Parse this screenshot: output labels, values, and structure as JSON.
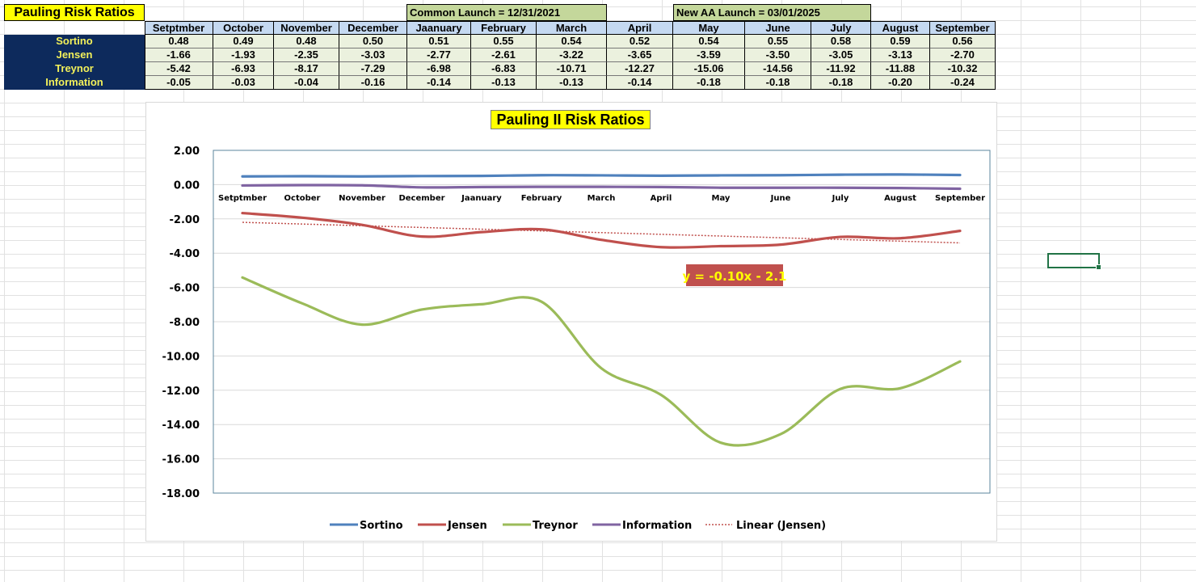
{
  "sheet": {
    "title": "Pauling Risk Ratios",
    "launch_notes": [
      "Common Launch = 12/31/2021",
      "New AA Launch = 03/01/2025"
    ],
    "columns": [
      "Setptmber",
      "October",
      "November",
      "December",
      "Jaanuary",
      "February",
      "March",
      "April",
      "May",
      "June",
      "July",
      "August",
      "September"
    ],
    "rows": [
      {
        "label": "Sortino",
        "values": [
          "0.48",
          "0.49",
          "0.48",
          "0.50",
          "0.51",
          "0.55",
          "0.54",
          "0.52",
          "0.54",
          "0.55",
          "0.58",
          "0.59",
          "0.56"
        ]
      },
      {
        "label": "Jensen",
        "values": [
          "-1.66",
          "-1.93",
          "-2.35",
          "-3.03",
          "-2.77",
          "-2.61",
          "-3.22",
          "-3.65",
          "-3.59",
          "-3.50",
          "-3.05",
          "-3.13",
          "-2.70"
        ]
      },
      {
        "label": "Treynor",
        "values": [
          "-5.42",
          "-6.93",
          "-8.17",
          "-7.29",
          "-6.98",
          "-6.83",
          "-10.71",
          "-12.27",
          "-15.06",
          "-14.56",
          "-11.92",
          "-11.88",
          "-10.32"
        ]
      },
      {
        "label": "Information",
        "values": [
          "-0.05",
          "-0.03",
          "-0.04",
          "-0.16",
          "-0.14",
          "-0.13",
          "-0.13",
          "-0.14",
          "-0.18",
          "-0.18",
          "-0.18",
          "-0.20",
          "-0.24"
        ]
      }
    ]
  },
  "chart_data": {
    "type": "line",
    "title": "Pauling II Risk Ratios",
    "categories": [
      "Setptmber",
      "October",
      "November",
      "December",
      "Jaanuary",
      "February",
      "March",
      "April",
      "May",
      "June",
      "July",
      "August",
      "September"
    ],
    "series": [
      {
        "name": "Sortino",
        "color": "#4f81bd",
        "values": [
          0.48,
          0.49,
          0.48,
          0.5,
          0.51,
          0.55,
          0.54,
          0.52,
          0.54,
          0.55,
          0.58,
          0.59,
          0.56
        ]
      },
      {
        "name": "Jensen",
        "color": "#c0504d",
        "values": [
          -1.66,
          -1.93,
          -2.35,
          -3.03,
          -2.77,
          -2.61,
          -3.22,
          -3.65,
          -3.59,
          -3.5,
          -3.05,
          -3.13,
          -2.7
        ]
      },
      {
        "name": "Treynor",
        "color": "#9bbb59",
        "values": [
          -5.42,
          -6.93,
          -8.17,
          -7.29,
          -6.98,
          -6.83,
          -10.71,
          -12.27,
          -15.06,
          -14.56,
          -11.92,
          -11.88,
          -10.32
        ]
      },
      {
        "name": "Information",
        "color": "#8064a2",
        "values": [
          -0.05,
          -0.03,
          -0.04,
          -0.16,
          -0.14,
          -0.13,
          -0.13,
          -0.14,
          -0.18,
          -0.18,
          -0.18,
          -0.2,
          -0.24
        ]
      }
    ],
    "trendline": {
      "name": "Linear (Jensen)",
      "equation": "y = -0.10x - 2.1",
      "slope": -0.1,
      "intercept": -2.1,
      "color": "#c0504d"
    },
    "y_ticks": [
      "2.00",
      "0.00",
      "-2.00",
      "-4.00",
      "-6.00",
      "-8.00",
      "-10.00",
      "-12.00",
      "-14.00",
      "-16.00",
      "-18.00"
    ],
    "ylim": [
      -18,
      2
    ],
    "xlabel": "",
    "ylabel": "",
    "grid": true,
    "legend_position": "bottom"
  }
}
